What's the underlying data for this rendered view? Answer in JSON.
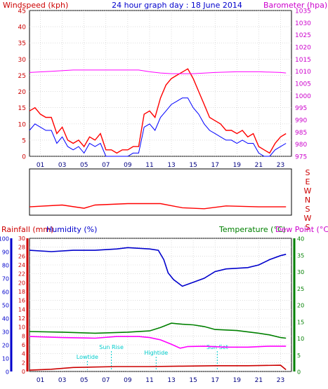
{
  "chart_data": [
    {
      "type": "line",
      "title": "24 hour graph day : 18 June 2014",
      "left_axis": {
        "label": "Windspeed (kph)",
        "ylim": [
          0,
          45
        ],
        "ticks": [
          "0",
          "5",
          "10",
          "15",
          "20",
          "25",
          "30",
          "35",
          "40",
          "45"
        ]
      },
      "right_axis": {
        "label": "Barometer (hpa)",
        "ylim": [
          975,
          1035
        ],
        "ticks": [
          "975",
          "980",
          "985",
          "990",
          "995",
          "1000",
          "1005",
          "1010",
          "1015",
          "1020",
          "1025",
          "1030",
          "1035"
        ]
      },
      "x_ticks": [
        "01",
        "03",
        "05",
        "07",
        "09",
        "11",
        "13",
        "15",
        "17",
        "19",
        "21",
        "23"
      ],
      "series": [
        {
          "axis": "left",
          "color": "#ff0000",
          "points": [
            [
              0,
              14
            ],
            [
              0.5,
              15
            ],
            [
              1,
              13
            ],
            [
              1.5,
              12
            ],
            [
              2,
              12
            ],
            [
              2.5,
              7
            ],
            [
              3,
              9
            ],
            [
              3.5,
              5
            ],
            [
              4,
              4
            ],
            [
              4.5,
              5
            ],
            [
              5,
              3
            ],
            [
              5.5,
              6
            ],
            [
              6,
              5
            ],
            [
              6.5,
              7
            ],
            [
              7,
              2
            ],
            [
              7.5,
              2
            ],
            [
              8,
              1
            ],
            [
              8.5,
              2
            ],
            [
              9,
              2
            ],
            [
              9.5,
              3
            ],
            [
              10,
              3
            ],
            [
              10.5,
              13
            ],
            [
              11,
              14
            ],
            [
              11.5,
              12
            ],
            [
              12,
              18
            ],
            [
              12.5,
              22
            ],
            [
              13,
              24
            ],
            [
              13.5,
              25
            ],
            [
              14,
              26
            ],
            [
              14.5,
              27
            ],
            [
              15,
              24
            ],
            [
              15.5,
              20
            ],
            [
              16,
              16
            ],
            [
              16.5,
              12
            ],
            [
              17,
              11
            ],
            [
              17.5,
              10
            ],
            [
              18,
              8
            ],
            [
              18.5,
              8
            ],
            [
              19,
              7
            ],
            [
              19.5,
              8
            ],
            [
              20,
              6
            ],
            [
              20.5,
              7
            ],
            [
              21,
              3
            ],
            [
              21.5,
              2
            ],
            [
              22,
              1
            ],
            [
              22.5,
              4
            ],
            [
              23,
              6
            ],
            [
              23.5,
              7
            ]
          ]
        },
        {
          "axis": "left",
          "color": "#0000ff",
          "points": [
            [
              0,
              8
            ],
            [
              0.5,
              10
            ],
            [
              1,
              9
            ],
            [
              1.5,
              8
            ],
            [
              2,
              8
            ],
            [
              2.5,
              4
            ],
            [
              3,
              6
            ],
            [
              3.5,
              3
            ],
            [
              4,
              2
            ],
            [
              4.5,
              3
            ],
            [
              5,
              1
            ],
            [
              5.5,
              4
            ],
            [
              6,
              3
            ],
            [
              6.5,
              4
            ],
            [
              7,
              0
            ],
            [
              7.5,
              0
            ],
            [
              8,
              0
            ],
            [
              8.5,
              0
            ],
            [
              9,
              0
            ],
            [
              9.5,
              1
            ],
            [
              10,
              1
            ],
            [
              10.5,
              9
            ],
            [
              11,
              10
            ],
            [
              11.5,
              8
            ],
            [
              12,
              12
            ],
            [
              12.5,
              14
            ],
            [
              13,
              16
            ],
            [
              13.5,
              17
            ],
            [
              14,
              18
            ],
            [
              14.5,
              18
            ],
            [
              15,
              15
            ],
            [
              15.5,
              13
            ],
            [
              16,
              10
            ],
            [
              16.5,
              8
            ],
            [
              17,
              7
            ],
            [
              17.5,
              6
            ],
            [
              18,
              5
            ],
            [
              18.5,
              5
            ],
            [
              19,
              4
            ],
            [
              19.5,
              5
            ],
            [
              20,
              4
            ],
            [
              20.5,
              4
            ],
            [
              21,
              1
            ],
            [
              21.5,
              0
            ],
            [
              22,
              0
            ],
            [
              22.5,
              2
            ],
            [
              23,
              3
            ],
            [
              23.5,
              4
            ]
          ]
        },
        {
          "axis": "right",
          "color": "#ff00ff",
          "points": [
            [
              0,
              1009.5
            ],
            [
              2,
              1010
            ],
            [
              4,
              1010.5
            ],
            [
              6,
              1010.5
            ],
            [
              8,
              1010.5
            ],
            [
              10,
              1010.5
            ],
            [
              11,
              1009.8
            ],
            [
              12,
              1009.3
            ],
            [
              13,
              1009
            ],
            [
              15,
              1009
            ],
            [
              17,
              1009.5
            ],
            [
              19,
              1009.8
            ],
            [
              21,
              1009.8
            ],
            [
              23,
              1009.5
            ],
            [
              23.5,
              1009.3
            ]
          ]
        }
      ]
    },
    {
      "type": "line",
      "title": "",
      "right_labels": [
        "S",
        "E",
        "W",
        "N",
        "S",
        "W",
        "S"
      ],
      "series": [
        {
          "color": "#ff0000",
          "points": [
            [
              0,
              0.18
            ],
            [
              3,
              0.22
            ],
            [
              5,
              0.15
            ],
            [
              6,
              0.22
            ],
            [
              9,
              0.25
            ],
            [
              12,
              0.25
            ],
            [
              14,
              0.16
            ],
            [
              16,
              0.14
            ],
            [
              18,
              0.2
            ],
            [
              21,
              0.18
            ],
            [
              23.5,
              0.18
            ]
          ]
        }
      ]
    },
    {
      "type": "line",
      "title": "",
      "axes_labels": {
        "rainfall": "Rainfall (mm)",
        "humidity": "Humidity (%)",
        "temperature": "Temperature (°C)",
        "dewpoint": "Dew Point (°C)"
      },
      "left_outer_axis": {
        "ylim": [
          0,
          100
        ],
        "ticks": [
          "0",
          "10",
          "20",
          "30",
          "40",
          "50",
          "60",
          "70",
          "80",
          "90",
          "100"
        ]
      },
      "left_inner_axis": {
        "ylim": [
          0,
          30
        ],
        "ticks": [
          "0",
          "2",
          "4",
          "6",
          "8",
          "10",
          "12",
          "14",
          "16",
          "18",
          "20",
          "22",
          "24",
          "26",
          "28",
          "30"
        ]
      },
      "right_axis": {
        "ylim": [
          0,
          40
        ],
        "ticks": [
          "0",
          "5",
          "10",
          "15",
          "20",
          "25",
          "30",
          "35",
          "40"
        ]
      },
      "x_ticks": [
        "01",
        "03",
        "05",
        "07",
        "09",
        "11",
        "13",
        "15",
        "17",
        "19",
        "21",
        "23"
      ],
      "annotations": [
        {
          "text": "Lowtide",
          "x": 5.3
        },
        {
          "text": "Sun Rise",
          "x": 7.5
        },
        {
          "text": "Hightide",
          "x": 11.6
        },
        {
          "text": "Sun Set",
          "x": 17.2
        }
      ],
      "series": [
        {
          "axis": "left_outer",
          "color": "#0000cc",
          "points": [
            [
              0,
              91
            ],
            [
              2,
              90
            ],
            [
              4,
              91
            ],
            [
              6,
              91
            ],
            [
              8,
              92
            ],
            [
              9,
              93
            ],
            [
              11,
              92
            ],
            [
              11.8,
              91
            ],
            [
              12.3,
              84
            ],
            [
              12.7,
              74
            ],
            [
              13.2,
              69
            ],
            [
              14,
              64
            ],
            [
              15,
              67
            ],
            [
              16,
              70
            ],
            [
              17,
              75
            ],
            [
              18,
              77
            ],
            [
              20,
              78
            ],
            [
              21,
              80
            ],
            [
              22,
              84
            ],
            [
              23,
              87
            ],
            [
              23.5,
              88
            ]
          ]
        },
        {
          "axis": "right",
          "color": "#008000",
          "points": [
            [
              0,
              12
            ],
            [
              3,
              11.8
            ],
            [
              6,
              11.5
            ],
            [
              9,
              11.8
            ],
            [
              11,
              12.2
            ],
            [
              12,
              13.2
            ],
            [
              13,
              14.5
            ],
            [
              14,
              14.2
            ],
            [
              15,
              14
            ],
            [
              16,
              13.5
            ],
            [
              17,
              12.6
            ],
            [
              19,
              12.3
            ],
            [
              21,
              11.5
            ],
            [
              22,
              11
            ],
            [
              23,
              10.2
            ],
            [
              23.5,
              10
            ]
          ]
        },
        {
          "axis": "right",
          "color": "#ff00ff",
          "points": [
            [
              0,
              10.5
            ],
            [
              3,
              10.2
            ],
            [
              6,
              10
            ],
            [
              8,
              10.5
            ],
            [
              10,
              10.5
            ],
            [
              11,
              10.2
            ],
            [
              12,
              9.5
            ],
            [
              13,
              8.2
            ],
            [
              13.8,
              7
            ],
            [
              14.5,
              7.5
            ],
            [
              16,
              7.6
            ],
            [
              18,
              7.3
            ],
            [
              20,
              7.3
            ],
            [
              22,
              7.6
            ],
            [
              23.5,
              7.6
            ]
          ]
        },
        {
          "axis": "left_inner",
          "color": "#cc0000",
          "points": [
            [
              0,
              0.3
            ],
            [
              2,
              0.5
            ],
            [
              4,
              0.9
            ],
            [
              8,
              1.1
            ],
            [
              11,
              1.1
            ],
            [
              14,
              1.2
            ],
            [
              17,
              1.3
            ],
            [
              20,
              1.3
            ],
            [
              23,
              1.4
            ],
            [
              23.5,
              0.4
            ]
          ]
        }
      ]
    }
  ]
}
